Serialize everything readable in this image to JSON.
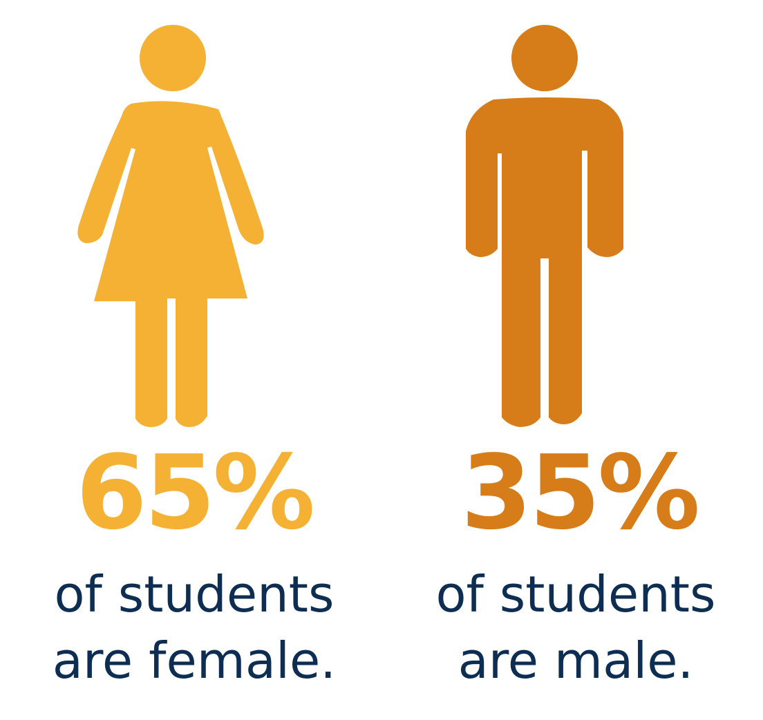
{
  "stats": [
    {
      "id": "female",
      "percent": "65%",
      "line1": "of students",
      "line2": "are female.",
      "value": 65,
      "color": "#f4b133",
      "icon": "female-figure-icon"
    },
    {
      "id": "male",
      "percent": "35%",
      "line1": "of students",
      "line2": "are male.",
      "value": 35,
      "color": "#d67c19",
      "icon": "male-figure-icon"
    }
  ],
  "text_color": "#0d2d52"
}
